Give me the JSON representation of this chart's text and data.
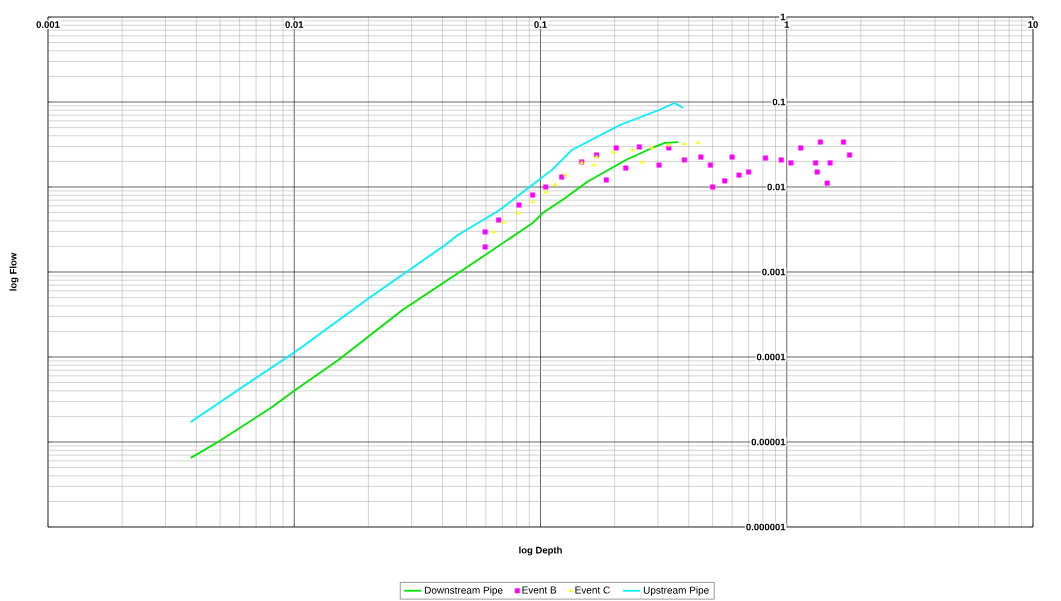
{
  "chart_data": {
    "type": "line",
    "xlabel": "log Depth",
    "ylabel": "log Flow",
    "log": "xy",
    "grid": true,
    "legend": "bottom",
    "xlim": [
      0.001,
      10
    ],
    "ylim": [
      1e-06,
      1
    ],
    "xticks": [
      0.001,
      0.01,
      0.1,
      1,
      10
    ],
    "yticks": [
      {
        "value": 1e-06,
        "label": "0.000001"
      },
      {
        "value": 1e-05,
        "label": "0.00001"
      },
      {
        "value": 0.0001,
        "label": "0.0001"
      },
      0.001,
      0.01,
      0.1,
      1
    ],
    "series": [
      {
        "name": "Downstream Pipe",
        "marker": "none",
        "color": "#00e600",
        "x": [
          0.0038,
          0.0049,
          0.008,
          0.0101,
          0.0151,
          0.0275,
          0.0506,
          0.0929,
          0.102,
          0.126,
          0.155,
          0.222,
          0.284,
          0.32,
          0.363
        ],
        "values": [
          6.5e-06,
          1e-05,
          2.5e-05,
          4.1e-05,
          9.2e-05,
          0.000357,
          0.00115,
          0.00377,
          0.00494,
          0.00743,
          0.0115,
          0.0208,
          0.0288,
          0.033,
          0.0338
        ]
      },
      {
        "name": "Event B",
        "type": "scatter",
        "marker": "square",
        "color": "#ff00ff",
        "x": [
          0.0596,
          0.0596,
          0.0676,
          0.0818,
          0.0929,
          0.105,
          0.122,
          0.147,
          0.169,
          0.203,
          0.252,
          0.332,
          0.185,
          0.222,
          0.303,
          0.384,
          0.448,
          0.49,
          0.5,
          0.56,
          0.6,
          0.64,
          0.7,
          0.82,
          0.95,
          1.04,
          1.14,
          1.37,
          1.7,
          1.8,
          1.5,
          1.46,
          1.33,
          1.31
        ],
        "values": [
          0.00197,
          0.00296,
          0.00409,
          0.00614,
          0.00805,
          0.01,
          0.0131,
          0.0197,
          0.0238,
          0.0288,
          0.0296,
          0.0288,
          0.0121,
          0.0167,
          0.0181,
          0.0208,
          0.0225,
          0.0181,
          0.01,
          0.0118,
          0.0225,
          0.0138,
          0.015,
          0.0219,
          0.0208,
          0.0192,
          0.0288,
          0.0338,
          0.0338,
          0.0238,
          0.0192,
          0.0111,
          0.015,
          0.0192
        ]
      },
      {
        "name": "Event C",
        "type": "scatter",
        "marker": "triangle",
        "color": "#ffff00",
        "x": [
          0.0647,
          0.0708,
          0.0811,
          0.0929,
          0.105,
          0.1146,
          0.126,
          0.147,
          0.169,
          0.198,
          0.237,
          0.284,
          0.332,
          0.384,
          0.436,
          0.165,
          0.259
        ],
        "values": [
          0.00296,
          0.00387,
          0.00494,
          0.00667,
          0.00873,
          0.0106,
          0.0138,
          0.0192,
          0.0225,
          0.0258,
          0.0272,
          0.0288,
          0.0312,
          0.0321,
          0.033,
          0.0181,
          0.0197
        ]
      },
      {
        "name": "Upstream Pipe",
        "marker": "none",
        "color": "#00f0ff",
        "x": [
          0.0038,
          0.0075,
          0.0101,
          0.0204,
          0.041,
          0.0462,
          0.0683,
          0.0849,
          0.111,
          0.134,
          0.21,
          0.303,
          0.35,
          0.38
        ],
        "values": [
          1.72e-05,
          6.5e-05,
          0.000115,
          0.000508,
          0.00208,
          0.00272,
          0.00536,
          0.00873,
          0.0158,
          0.0272,
          0.0536,
          0.0805,
          0.0973,
          0.085
        ]
      }
    ]
  }
}
